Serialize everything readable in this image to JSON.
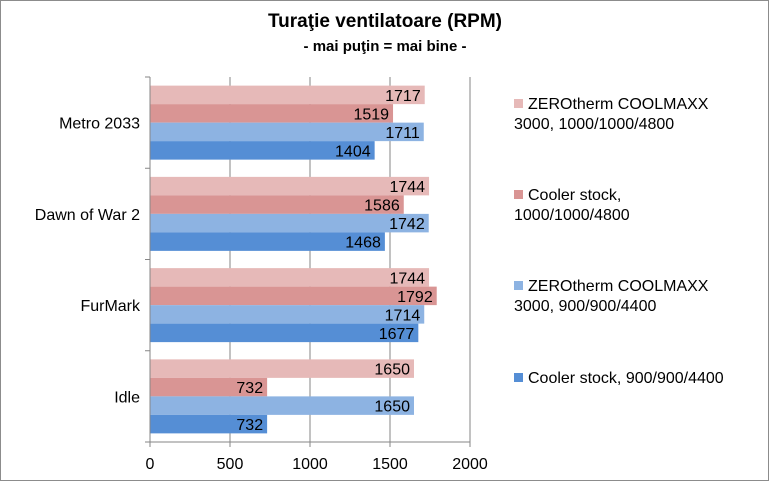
{
  "chart_data": {
    "type": "bar",
    "orientation": "horizontal",
    "title": "Turaţie  ventilatoare  (RPM)",
    "subtitle": "- mai puţin = mai bine -",
    "categories": [
      "Metro 2033",
      "Dawn of War 2",
      "FurMark",
      "Idle"
    ],
    "series": [
      {
        "name": "ZEROtherm COOLMAXX 3000, 1000/1000/4800",
        "legend_lines": [
          "ZEROtherm COOLMAXX",
          "3000, 1000/1000/4800"
        ],
        "color": "#e6b9b8",
        "values": [
          1717,
          1744,
          1744,
          1650
        ]
      },
      {
        "name": "Cooler stock, 1000/1000/4800",
        "legend_lines": [
          "Cooler stock,",
          "1000/1000/4800"
        ],
        "color": "#d99594",
        "values": [
          1519,
          1586,
          1792,
          732
        ]
      },
      {
        "name": "ZEROtherm COOLMAXX 3000, 900/900/4400",
        "legend_lines": [
          "ZEROtherm COOLMAXX",
          "3000, 900/900/4400"
        ],
        "color": "#8db3e2",
        "values": [
          1711,
          1742,
          1714,
          1650
        ]
      },
      {
        "name": "Cooler stock, 900/900/4400",
        "legend_lines": [
          "Cooler stock, 900/900/4400"
        ],
        "color": "#558ed5",
        "values": [
          1404,
          1468,
          1677,
          732
        ]
      }
    ],
    "xlim": [
      0,
      2000
    ],
    "xticks": [
      0,
      500,
      1000,
      1500,
      2000
    ],
    "grid": true,
    "legend_position": "right"
  }
}
